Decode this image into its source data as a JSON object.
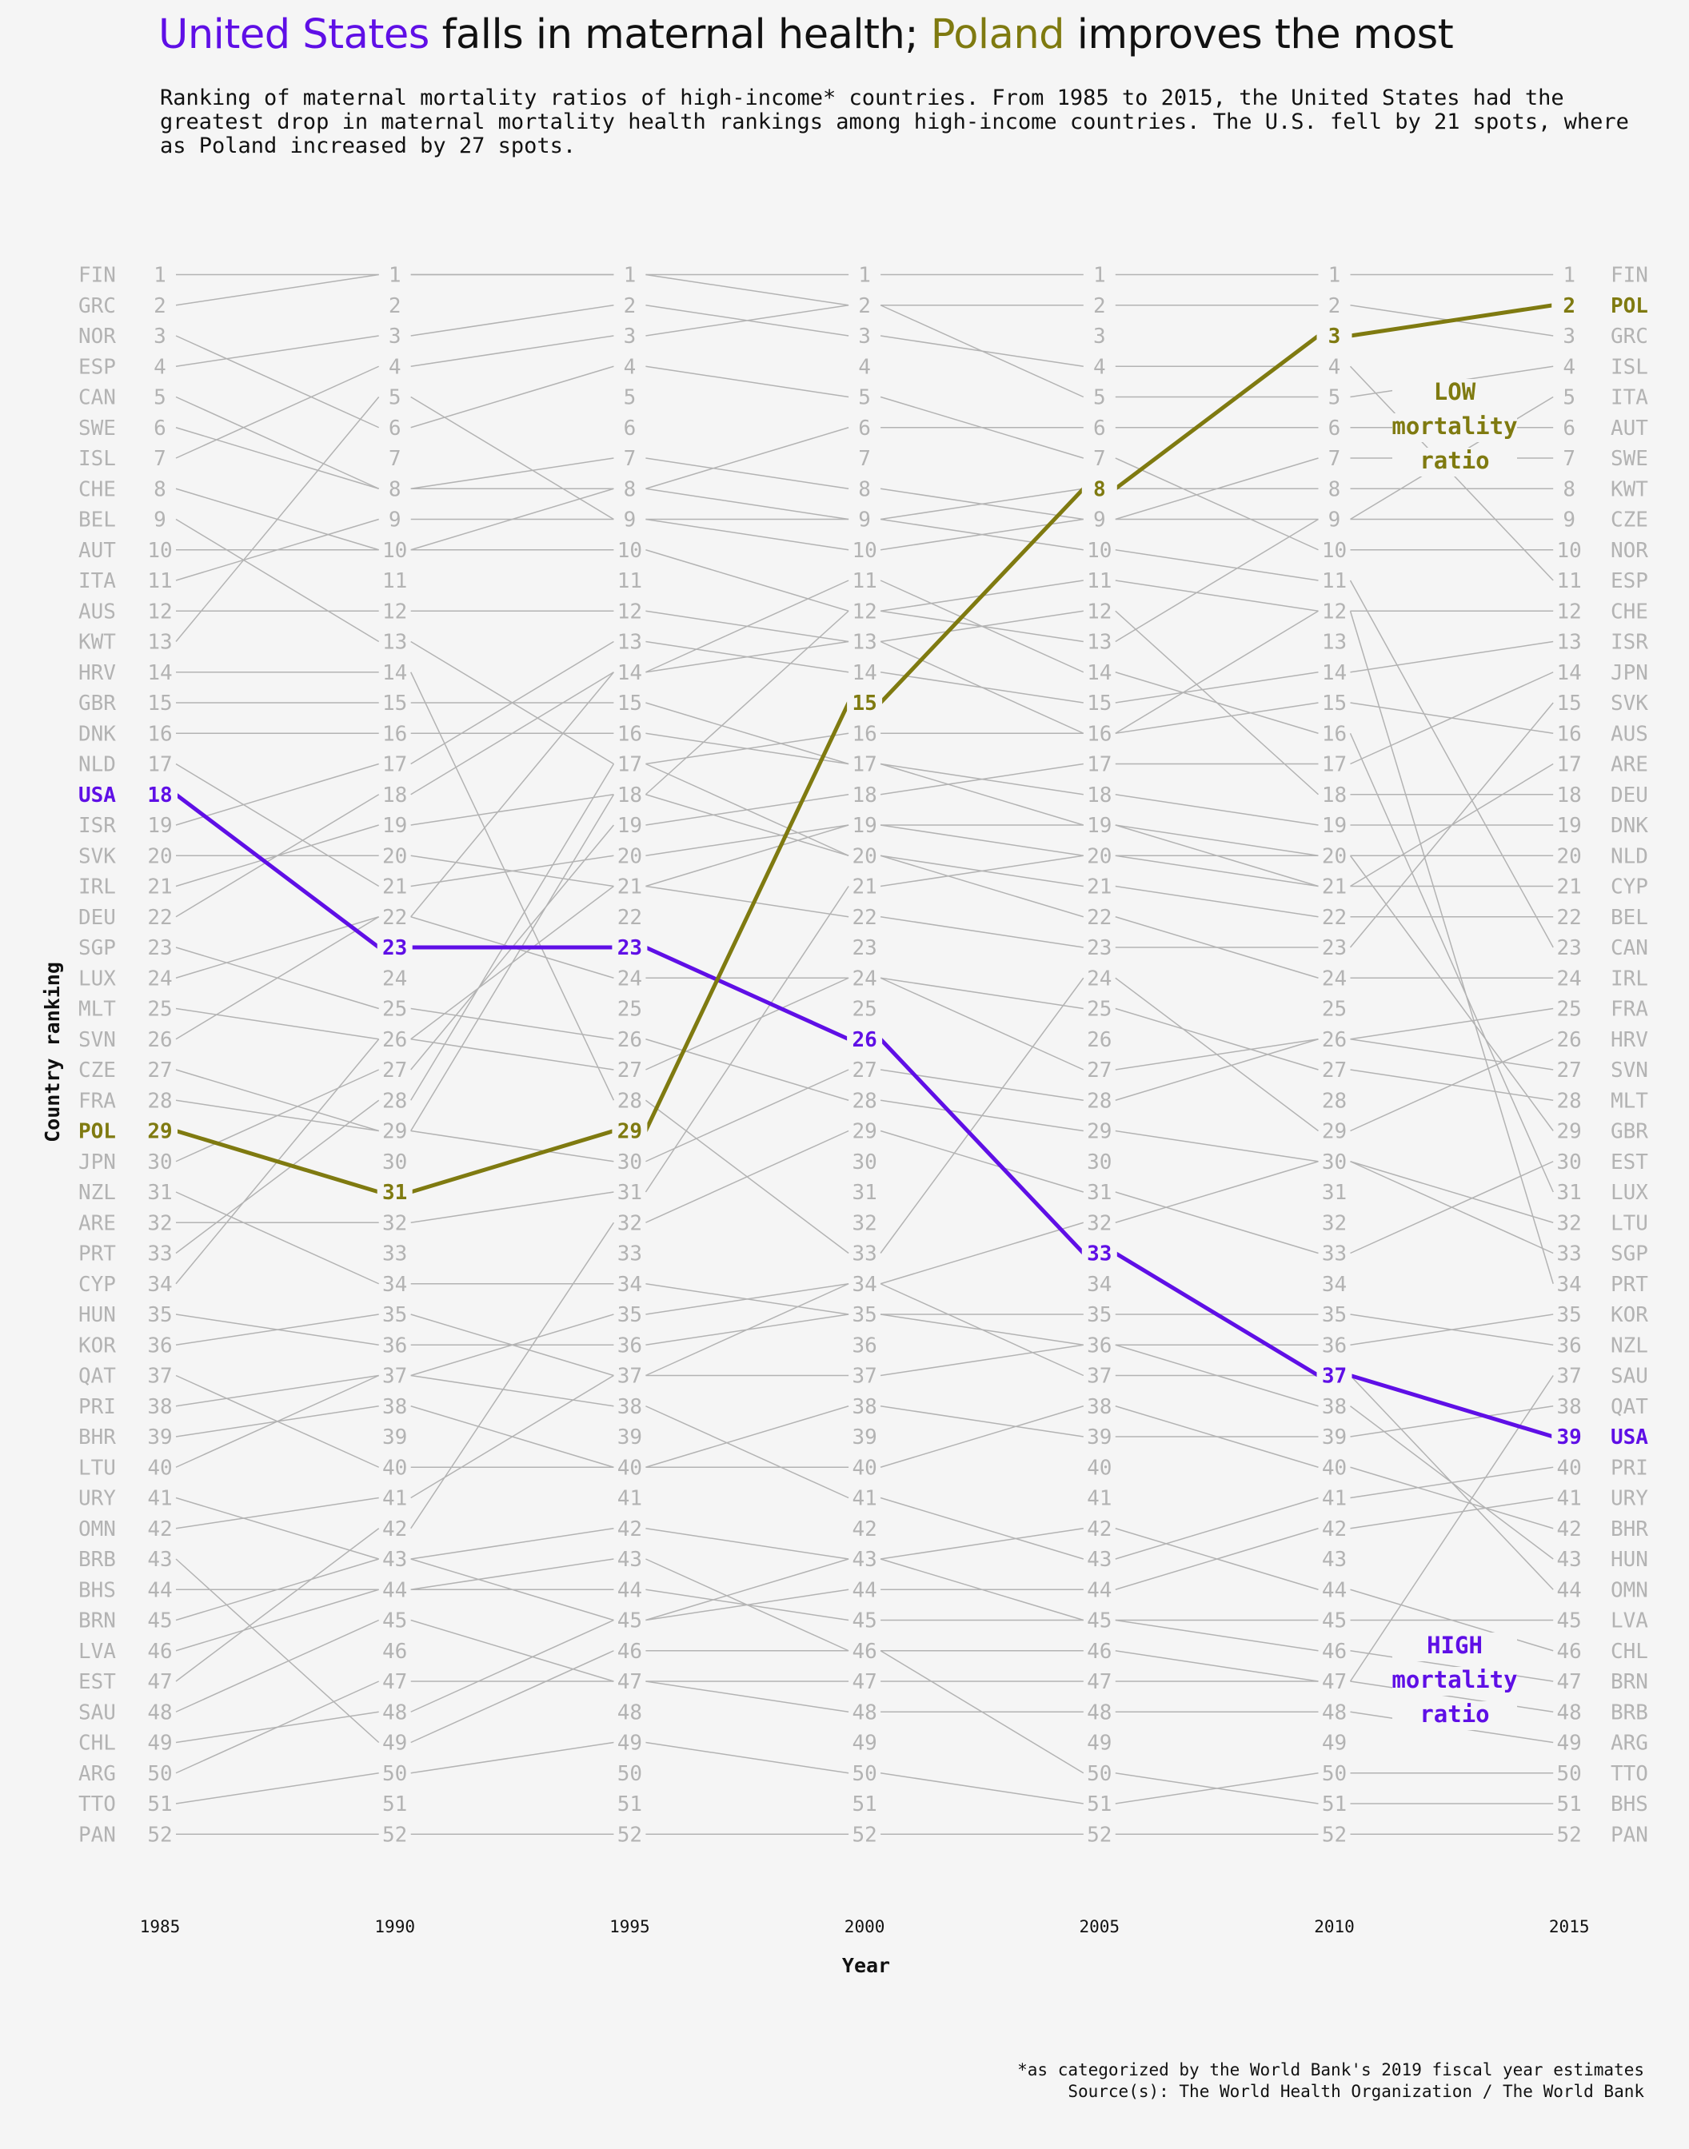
{
  "header": {
    "title_usa": "United States",
    "title_mid": " falls in maternal health; ",
    "title_pol": "Poland",
    "title_end": " improves the most",
    "subtitle": "Ranking of maternal mortality ratios of high-income* countries.  From 1985 to 2015, the United States had the greatest drop in maternal mortality health rankings among high-income countries.  The U.S. fell by 21 spots, where as Poland increased by 27 spots."
  },
  "footer": {
    "note": "*as categorized by the World Bank's 2019 fiscal year estimates",
    "source": "Source(s): The World Health Organization / The World Bank"
  },
  "colors": {
    "usa": "#5f0fe6",
    "pol": "#7f7a10",
    "other": "#b3b3b3",
    "background": "#f5f5f5",
    "text": "#111111"
  },
  "chart_data": {
    "type": "line",
    "chart_subtype": "bump",
    "xlabel": "Year",
    "ylabel": "Country ranking",
    "x": [
      1985,
      1990,
      1995,
      2000,
      2005,
      2010,
      2015
    ],
    "ylim": [
      1,
      52
    ],
    "y_inverted": true,
    "left_labels": [
      "FIN",
      "GRC",
      "NOR",
      "ESP",
      "CAN",
      "SWE",
      "ISL",
      "CHE",
      "BEL",
      "AUT",
      "ITA",
      "AUS",
      "KWT",
      "HRV",
      "GBR",
      "DNK",
      "NLD",
      "USA",
      "ISR",
      "SVK",
      "IRL",
      "DEU",
      "SGP",
      "LUX",
      "MLT",
      "SVN",
      "CZE",
      "FRA",
      "POL",
      "JPN",
      "NZL",
      "ARE",
      "PRT",
      "CYP",
      "HUN",
      "KOR",
      "QAT",
      "PRI",
      "BHR",
      "LTU",
      "URY",
      "OMN",
      "BRB",
      "BHS",
      "BRN",
      "LVA",
      "EST",
      "SAU",
      "CHL",
      "ARG",
      "TTO",
      "PAN"
    ],
    "right_labels": [
      "FIN",
      "POL",
      "GRC",
      "ISL",
      "ITA",
      "AUT",
      "SWE",
      "KWT",
      "CZE",
      "NOR",
      "ESP",
      "CHE",
      "ISR",
      "JPN",
      "SVK",
      "AUS",
      "ARE",
      "DEU",
      "DNK",
      "NLD",
      "CYP",
      "BEL",
      "CAN",
      "IRL",
      "FRA",
      "HRV",
      "SVN",
      "MLT",
      "GBR",
      "EST",
      "LUX",
      "LTU",
      "SGP",
      "PRT",
      "KOR",
      "NZL",
      "SAU",
      "QAT",
      "USA",
      "PRI",
      "URY",
      "BHR",
      "HUN",
      "OMN",
      "LVA",
      "CHL",
      "BRN",
      "BRB",
      "ARG",
      "TTO",
      "BHS",
      "PAN"
    ],
    "highlight": [
      {
        "name": "USA",
        "ranks": [
          18,
          23,
          23,
          26,
          33,
          37,
          39
        ]
      },
      {
        "name": "POL",
        "ranks": [
          29,
          31,
          29,
          15,
          8,
          3,
          2
        ]
      }
    ],
    "series": [
      {
        "name": "FIN",
        "ranks": [
          1,
          1,
          1,
          1,
          1,
          1,
          1
        ]
      },
      {
        "name": "GRC",
        "ranks": [
          2,
          1,
          1,
          2,
          2,
          2,
          3
        ]
      },
      {
        "name": "NOR",
        "ranks": [
          3,
          6,
          4,
          5,
          7,
          10,
          10
        ]
      },
      {
        "name": "ESP",
        "ranks": [
          4,
          3,
          2,
          3,
          4,
          4,
          11
        ]
      },
      {
        "name": "CAN",
        "ranks": [
          5,
          8,
          8,
          9,
          10,
          11,
          23
        ]
      },
      {
        "name": "SWE",
        "ranks": [
          6,
          8,
          7,
          8,
          9,
          7,
          7
        ]
      },
      {
        "name": "ISL",
        "ranks": [
          7,
          4,
          3,
          2,
          5,
          5,
          4
        ]
      },
      {
        "name": "CHE",
        "ranks": [
          8,
          10,
          10,
          12,
          11,
          12,
          12
        ]
      },
      {
        "name": "BEL",
        "ranks": [
          9,
          13,
          17,
          20,
          21,
          22,
          22
        ]
      },
      {
        "name": "AUT",
        "ranks": [
          10,
          10,
          8,
          6,
          6,
          6,
          6
        ]
      },
      {
        "name": "ITA",
        "ranks": [
          11,
          9,
          9,
          10,
          9,
          9,
          5
        ]
      },
      {
        "name": "AUS",
        "ranks": [
          12,
          12,
          12,
          13,
          16,
          15,
          16
        ]
      },
      {
        "name": "KWT",
        "ranks": [
          13,
          5,
          9,
          9,
          8,
          8,
          8
        ]
      },
      {
        "name": "HRV",
        "ranks": [
          14,
          14,
          28,
          33,
          24,
          29,
          26
        ]
      },
      {
        "name": "GBR",
        "ranks": [
          15,
          15,
          15,
          17,
          19,
          20,
          29
        ]
      },
      {
        "name": "DNK",
        "ranks": [
          16,
          16,
          16,
          17,
          18,
          19,
          19
        ]
      },
      {
        "name": "NLD",
        "ranks": [
          17,
          21,
          20,
          19,
          20,
          20,
          20
        ]
      },
      {
        "name": "ISR",
        "ranks": [
          19,
          17,
          13,
          14,
          15,
          14,
          13
        ]
      },
      {
        "name": "SVK",
        "ranks": [
          20,
          20,
          21,
          22,
          23,
          23,
          15
        ]
      },
      {
        "name": "IRL",
        "ranks": [
          21,
          19,
          18,
          20,
          22,
          24,
          24
        ]
      },
      {
        "name": "DEU",
        "ranks": [
          22,
          18,
          14,
          13,
          12,
          18,
          18
        ]
      },
      {
        "name": "SGP",
        "ranks": [
          23,
          25,
          26,
          28,
          29,
          30,
          33
        ]
      },
      {
        "name": "LUX",
        "ranks": [
          24,
          22,
          14,
          11,
          14,
          16,
          31
        ]
      },
      {
        "name": "MLT",
        "ranks": [
          25,
          26,
          27,
          24,
          25,
          27,
          28
        ]
      },
      {
        "name": "SVN",
        "ranks": [
          26,
          22,
          24,
          24,
          27,
          26,
          27
        ]
      },
      {
        "name": "CZE",
        "ranks": [
          27,
          29,
          18,
          12,
          13,
          9,
          9
        ]
      },
      {
        "name": "FRA",
        "ranks": [
          28,
          29,
          30,
          27,
          28,
          26,
          25
        ]
      },
      {
        "name": "JPN",
        "ranks": [
          30,
          27,
          19,
          18,
          17,
          17,
          14
        ]
      },
      {
        "name": "NZL",
        "ranks": [
          31,
          34,
          34,
          35,
          35,
          35,
          36
        ]
      },
      {
        "name": "ARE",
        "ranks": [
          32,
          32,
          31,
          21,
          20,
          21,
          17
        ]
      },
      {
        "name": "PRT",
        "ranks": [
          33,
          28,
          17,
          16,
          16,
          12,
          34
        ]
      },
      {
        "name": "CYP",
        "ranks": [
          34,
          26,
          21,
          19,
          19,
          21,
          21
        ]
      },
      {
        "name": "HUN",
        "ranks": [
          35,
          36,
          36,
          35,
          36,
          38,
          43
        ]
      },
      {
        "name": "KOR",
        "ranks": [
          36,
          35,
          37,
          37,
          36,
          36,
          35
        ]
      },
      {
        "name": "QAT",
        "ranks": [
          37,
          40,
          40,
          38,
          39,
          39,
          38
        ]
      },
      {
        "name": "PRI",
        "ranks": [
          38,
          37,
          38,
          41,
          43,
          41,
          40
        ]
      },
      {
        "name": "BHR",
        "ranks": [
          39,
          38,
          40,
          40,
          38,
          40,
          42
        ]
      },
      {
        "name": "LTU",
        "ranks": [
          40,
          37,
          35,
          34,
          32,
          30,
          32
        ]
      },
      {
        "name": "URY",
        "ranks": [
          41,
          43,
          45,
          44,
          44,
          42,
          41
        ]
      },
      {
        "name": "OMN",
        "ranks": [
          42,
          41,
          37,
          34,
          37,
          37,
          44
        ]
      },
      {
        "name": "BRB",
        "ranks": [
          43,
          49,
          46,
          46,
          46,
          47,
          48
        ]
      },
      {
        "name": "BHS",
        "ranks": [
          44,
          44,
          43,
          46,
          50,
          51,
          51
        ]
      },
      {
        "name": "BRN",
        "ranks": [
          45,
          43,
          42,
          43,
          45,
          46,
          47
        ]
      },
      {
        "name": "LVA",
        "ranks": [
          46,
          44,
          44,
          45,
          45,
          45,
          45
        ]
      },
      {
        "name": "EST",
        "ranks": [
          47,
          42,
          32,
          29,
          31,
          33,
          30
        ]
      },
      {
        "name": "SAU",
        "ranks": [
          48,
          45,
          47,
          47,
          47,
          47,
          37
        ]
      },
      {
        "name": "CHL",
        "ranks": [
          49,
          48,
          45,
          43,
          42,
          44,
          46
        ]
      },
      {
        "name": "ARG",
        "ranks": [
          50,
          47,
          47,
          48,
          48,
          48,
          49
        ]
      },
      {
        "name": "TTO",
        "ranks": [
          51,
          50,
          49,
          50,
          51,
          50,
          50
        ]
      },
      {
        "name": "PAN",
        "ranks": [
          52,
          52,
          52,
          52,
          52,
          52,
          52
        ]
      }
    ],
    "annotations": [
      {
        "key": "low",
        "lines": [
          "LOW",
          "mortality",
          "ratio"
        ],
        "color": "pol"
      },
      {
        "key": "high",
        "lines": [
          "HIGH",
          "mortality",
          "ratio"
        ],
        "color": "usa"
      }
    ],
    "grid": false
  }
}
